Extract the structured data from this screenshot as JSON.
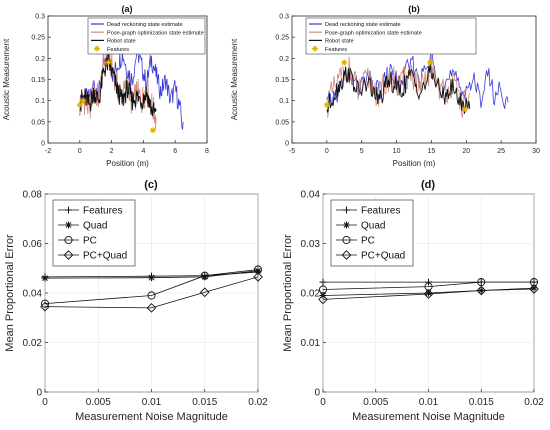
{
  "colors": {
    "dead_reckoning": "#3a3ad6",
    "pose_graph": "#d18a7a",
    "robot_state": "#111111",
    "features": "#e0b200",
    "axis": "#262626",
    "grid": "#e6e6e6"
  },
  "chart_data": [
    {
      "id": "a",
      "type": "line",
      "panel_label": "(a)",
      "xlabel": "Position (m)",
      "ylabel": "Acoustic Measurement",
      "xlim": [
        -2,
        8
      ],
      "ylim": [
        0,
        0.3
      ],
      "xticks": [
        "-2",
        "0",
        "2",
        "4",
        "6",
        "8"
      ],
      "yticks": [
        "0",
        "0.05",
        "0.1",
        "0.15",
        "0.2",
        "0.25",
        "0.3"
      ],
      "legend_position": "top-right",
      "series": [
        {
          "name": "Dead reckoning state estimate",
          "x": [
            0.0,
            0.3,
            0.6,
            0.9,
            1.2,
            1.5,
            1.8,
            2.1,
            2.4,
            2.7,
            3.0,
            3.3,
            3.6,
            3.9,
            4.2,
            4.5,
            4.8,
            5.1,
            5.4,
            5.7,
            6.0,
            6.3,
            6.5
          ],
          "y": [
            0.09,
            0.11,
            0.1,
            0.14,
            0.12,
            0.18,
            0.2,
            0.16,
            0.19,
            0.21,
            0.17,
            0.15,
            0.22,
            0.18,
            0.14,
            0.2,
            0.16,
            0.12,
            0.15,
            0.1,
            0.13,
            0.08,
            0.03
          ]
        },
        {
          "name": "Pose-graph optimization state estimate",
          "x": [
            0.0,
            0.3,
            0.6,
            0.9,
            1.2,
            1.5,
            1.8,
            2.1,
            2.4,
            2.7,
            3.0,
            3.3,
            3.6,
            3.9,
            4.2,
            4.5,
            4.8
          ],
          "y": [
            0.09,
            0.1,
            0.08,
            0.13,
            0.1,
            0.19,
            0.2,
            0.17,
            0.13,
            0.11,
            0.14,
            0.09,
            0.12,
            0.1,
            0.13,
            0.09,
            0.06
          ]
        },
        {
          "name": "Robot state",
          "x": [
            0.0,
            0.3,
            0.6,
            0.9,
            1.2,
            1.5,
            1.8,
            2.1,
            2.4,
            2.7,
            3.0,
            3.3,
            3.6,
            3.9,
            4.2,
            4.5,
            4.8
          ],
          "y": [
            0.1,
            0.11,
            0.09,
            0.12,
            0.1,
            0.17,
            0.19,
            0.16,
            0.12,
            0.1,
            0.13,
            0.1,
            0.11,
            0.1,
            0.12,
            0.08,
            0.07
          ]
        },
        {
          "name": "Features",
          "x": [
            0.0,
            0.2,
            1.8,
            4.6
          ],
          "y": [
            0.09,
            0.1,
            0.19,
            0.03
          ]
        }
      ]
    },
    {
      "id": "b",
      "type": "line",
      "panel_label": "(b)",
      "xlabel": "Position (m)",
      "ylabel": "Acoustic Measurement",
      "xlim": [
        -5,
        30
      ],
      "ylim": [
        0,
        0.3
      ],
      "xticks": [
        "-5",
        "0",
        "5",
        "10",
        "15",
        "20",
        "25",
        "30"
      ],
      "yticks": [
        "0",
        "0.05",
        "0.1",
        "0.15",
        "0.2",
        "0.25",
        "0.3"
      ],
      "legend_position": "top-right",
      "series": [
        {
          "name": "Dead reckoning state estimate",
          "x": [
            0,
            1.5,
            3,
            4.5,
            6,
            7.5,
            9,
            10.5,
            12,
            13.5,
            15,
            16.5,
            18,
            19.5,
            21,
            22,
            23,
            24,
            25,
            26
          ],
          "y": [
            0.09,
            0.12,
            0.16,
            0.13,
            0.15,
            0.12,
            0.17,
            0.14,
            0.19,
            0.15,
            0.2,
            0.13,
            0.16,
            0.12,
            0.15,
            0.1,
            0.17,
            0.11,
            0.13,
            0.08
          ]
        },
        {
          "name": "Pose-graph optimization state estimate",
          "x": [
            0,
            1.5,
            3,
            4.5,
            6,
            7.5,
            9,
            10.5,
            12,
            13.5,
            15,
            16.5,
            18,
            19.5,
            20.5
          ],
          "y": [
            0.09,
            0.14,
            0.18,
            0.12,
            0.15,
            0.11,
            0.16,
            0.13,
            0.17,
            0.12,
            0.18,
            0.12,
            0.14,
            0.09,
            0.1
          ]
        },
        {
          "name": "Robot state",
          "x": [
            0,
            1.5,
            3,
            4.5,
            6,
            7.5,
            9,
            10.5,
            12,
            13.5,
            15,
            16.5,
            18,
            19.5,
            20.5
          ],
          "y": [
            0.08,
            0.13,
            0.17,
            0.12,
            0.14,
            0.1,
            0.15,
            0.12,
            0.16,
            0.12,
            0.17,
            0.11,
            0.13,
            0.09,
            0.09
          ]
        },
        {
          "name": "Features",
          "x": [
            0,
            2.5,
            14.8,
            19.8
          ],
          "y": [
            0.09,
            0.19,
            0.19,
            0.08
          ]
        }
      ]
    },
    {
      "id": "c",
      "type": "line",
      "panel_label": "(c)",
      "xlabel": "Measurement Noise Magnitude",
      "ylabel": "Mean Proportional Error",
      "xlim": [
        0,
        0.02
      ],
      "ylim": [
        0,
        0.08
      ],
      "xticks": [
        "0",
        "0.005",
        "0.01",
        "0.015",
        "0.02"
      ],
      "yticks": [
        "0",
        "0.02",
        "0.04",
        "0.06",
        "0.08"
      ],
      "legend_position": "top-left",
      "x": [
        0,
        0.01,
        0.015,
        0.02
      ],
      "series": [
        {
          "name": "Features",
          "values": [
            0.0465,
            0.0468,
            0.047,
            0.0485
          ]
        },
        {
          "name": "Quad",
          "values": [
            0.046,
            0.0462,
            0.0465,
            0.049
          ]
        },
        {
          "name": "PC",
          "values": [
            0.0357,
            0.039,
            0.047,
            0.0495
          ]
        },
        {
          "name": "PC+Quad",
          "values": [
            0.0345,
            0.034,
            0.0403,
            0.0465
          ]
        }
      ]
    },
    {
      "id": "d",
      "type": "line",
      "panel_label": "(d)",
      "xlabel": "Measurement Noise Magnitude",
      "ylabel": "Mean Proportional Error",
      "xlim": [
        0,
        0.02
      ],
      "ylim": [
        0,
        0.04
      ],
      "xticks": [
        "0",
        "0.005",
        "0.01",
        "0.015",
        "0.02"
      ],
      "yticks": [
        "0",
        "0.01",
        "0.02",
        "0.03",
        "0.04"
      ],
      "legend_position": "top-left",
      "x": [
        0,
        0.01,
        0.015,
        0.02
      ],
      "series": [
        {
          "name": "Features",
          "values": [
            0.0222,
            0.0222,
            0.0222,
            0.0222
          ]
        },
        {
          "name": "Quad",
          "values": [
            0.0195,
            0.02,
            0.0205,
            0.021
          ]
        },
        {
          "name": "PC",
          "values": [
            0.0207,
            0.0213,
            0.0222,
            0.0222
          ]
        },
        {
          "name": "PC+Quad",
          "values": [
            0.0187,
            0.0198,
            0.0205,
            0.0208
          ]
        }
      ]
    }
  ]
}
